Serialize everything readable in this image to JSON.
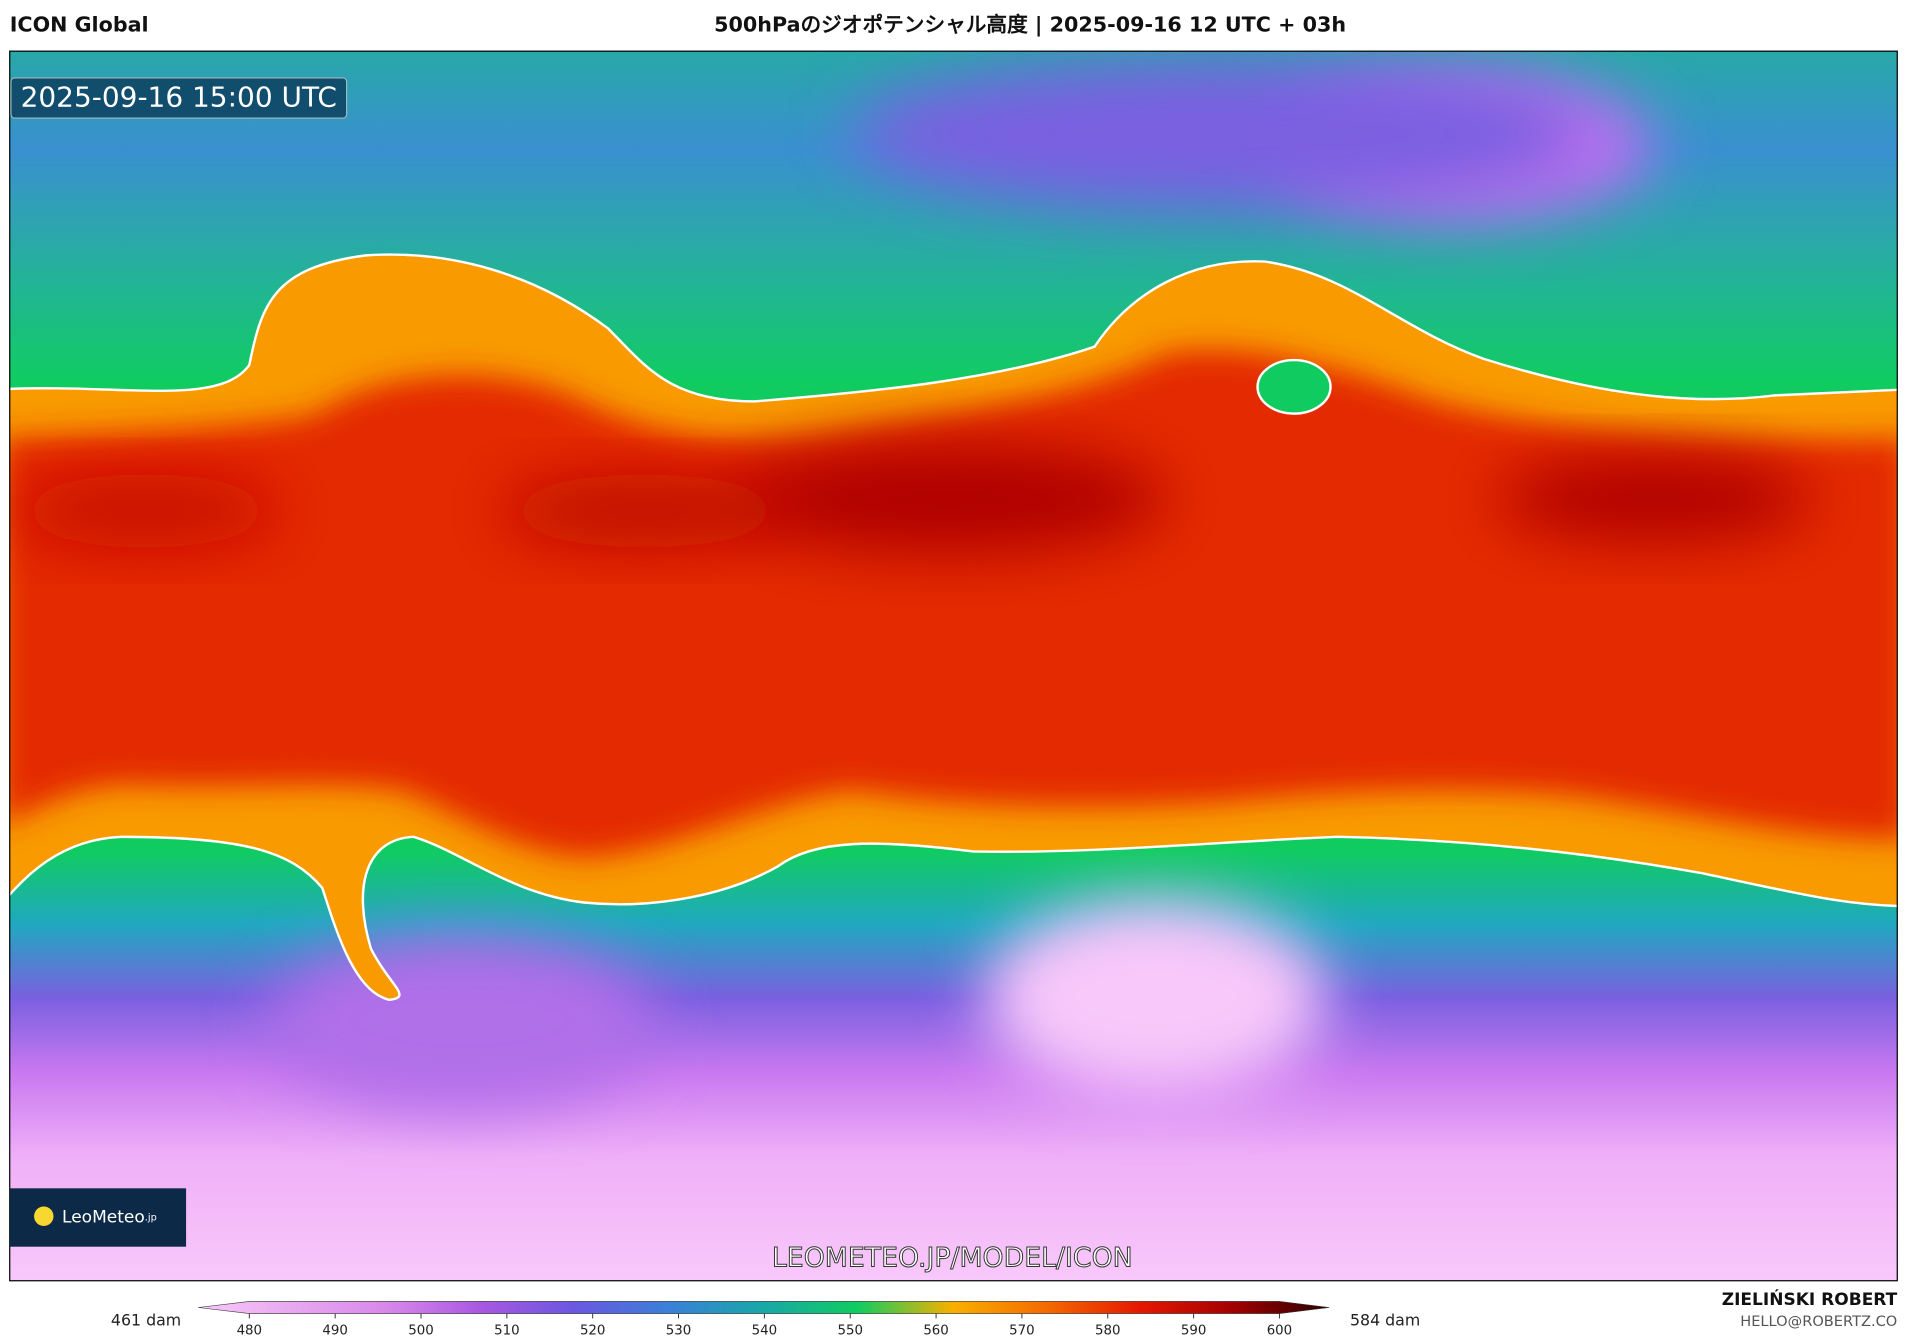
{
  "header": {
    "left": "ICON Global",
    "title": "500hPaのジオポテンシャル高度 | 2025-09-16 12 UTC + 03h"
  },
  "map": {
    "timestamp": "2025-09-16 15:00 UTC",
    "watermark": "LEOMETEO.JP/MODEL/ICON",
    "logo": {
      "name": "LeoMeteo",
      "suffix": ".jp"
    }
  },
  "colorbar": {
    "min_label": "461 dam",
    "max_label": "584 dam",
    "ticks": [
      480,
      490,
      500,
      510,
      520,
      530,
      540,
      550,
      560,
      570,
      580,
      590,
      600
    ],
    "colors": [
      "#f8c8f8",
      "#e8a8f0",
      "#d888ea",
      "#a858e0",
      "#6a58e0",
      "#3a80d8",
      "#18a8a8",
      "#10cc60",
      "#f8b000",
      "#f46a00",
      "#e41800",
      "#a00000",
      "#2a0000"
    ]
  },
  "credits": {
    "author": "ZIELIŃSKI ROBERT",
    "email": "HELLO@ROBERTZ.CO"
  }
}
